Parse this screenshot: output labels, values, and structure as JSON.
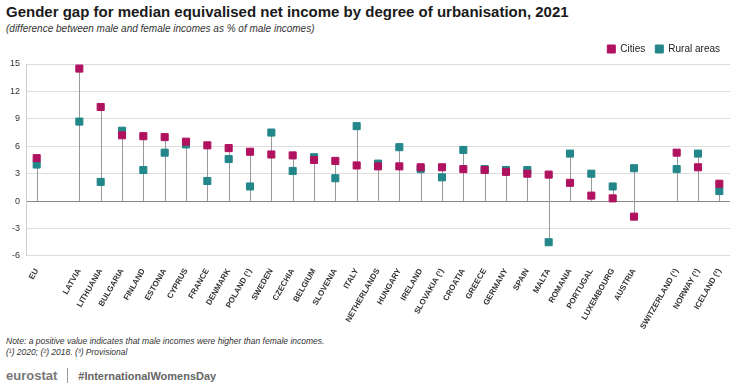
{
  "chart_data": {
    "type": "scatter",
    "title": "Gender gap for median equivalised net income by degree of urbanisation, 2021",
    "subtitle": "(difference between male and female incomes as % of male incomes)",
    "notes": [
      "Note: a positive value indicates that male incomes were higher than female incomes.",
      "(¹) 2020; (²) 2018. (³) Provisional"
    ],
    "footer": [
      "eurostat",
      "#InternationalWomensDay"
    ],
    "categories": [
      "EU",
      null,
      "LATVIA",
      "LITHUANIA",
      "BULGARIA",
      "FINLAND",
      "ESTONIA",
      "CYPRUS",
      "FRANCE",
      "DENMARK",
      "POLAND (¹)",
      "SWEDEN",
      "CZECHIA",
      "BELGIUM",
      "SLOVENIA",
      "ITALY",
      "NETHERLANDS",
      "HUNGARY",
      "IRELAND",
      "SLOVAKIA (¹)",
      "CROATIA",
      "GREECE",
      "GERMANY",
      "SPAIN",
      "MALTA",
      "ROMANIA",
      "PORTUGAL",
      "LUXEMBOURG",
      "AUSTRIA",
      null,
      "SWITZERLAND (¹)",
      "NORWAY (¹)",
      "ICELAND (²)"
    ],
    "series": [
      {
        "name": "Cities",
        "color": "#b0125f",
        "marker": "square",
        "values": [
          4.7,
          null,
          14.5,
          10.3,
          7.2,
          7.1,
          7.0,
          6.5,
          6.1,
          5.8,
          5.4,
          5.1,
          5.0,
          4.5,
          4.4,
          3.9,
          3.8,
          3.8,
          3.7,
          3.7,
          3.5,
          3.4,
          3.2,
          3.0,
          2.9,
          2.0,
          0.6,
          0.3,
          -1.7,
          null,
          5.3,
          3.7,
          1.9
        ]
      },
      {
        "name": "Rural areas",
        "color": "#23878a",
        "marker": "square",
        "values": [
          4.0,
          null,
          8.7,
          2.1,
          7.7,
          3.4,
          5.3,
          6.2,
          2.2,
          4.6,
          1.6,
          7.5,
          3.3,
          4.8,
          2.5,
          8.2,
          4.1,
          5.9,
          3.5,
          2.6,
          5.6,
          3.5,
          3.4,
          3.4,
          -4.5,
          5.2,
          3.0,
          1.6,
          3.6,
          null,
          3.5,
          5.2,
          1.1
        ]
      }
    ],
    "ylim": [
      -6,
      15
    ],
    "yticks": [
      -6,
      -3,
      0,
      3,
      6,
      9,
      12,
      15
    ],
    "grid": true,
    "legend": "top-right"
  }
}
